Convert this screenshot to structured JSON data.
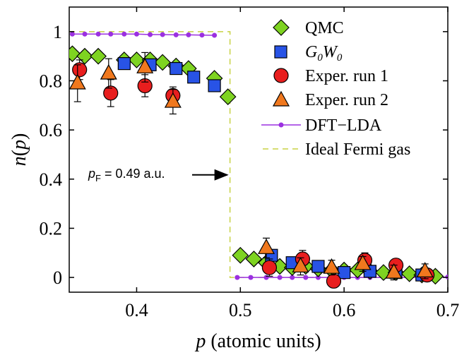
{
  "chart_data": {
    "type": "scatter",
    "title": "",
    "xlabel_var": "p",
    "xlabel_rest": " (atomic units)",
    "ylabel_main": "n",
    "ylabel_open": "(",
    "ylabel_var": "p",
    "ylabel_close": ")",
    "xlim": [
      0.335,
      0.7
    ],
    "ylim": [
      -0.06,
      1.1
    ],
    "xticks": [
      0.4,
      0.5,
      0.6,
      0.7
    ],
    "xtick_labels": [
      "0.4",
      "0.5",
      "0.6",
      "0.7"
    ],
    "yticks": [
      0,
      0.2,
      0.4,
      0.6,
      0.8,
      1
    ],
    "ytick_labels": [
      "0",
      "0.2",
      "0.4",
      "0.6",
      "0.8",
      "1"
    ],
    "grid": false,
    "legend_position": "top-right",
    "annotation": {
      "prefix": "p",
      "sub": "F",
      "suffix": " = 0.49 a.u.",
      "arrow_to_x": 0.49,
      "y": 0.4
    },
    "series": [
      {
        "name": "QMC",
        "marker": "diamond",
        "color": "#7ED321",
        "points": [
          [
            0.338,
            0.91
          ],
          [
            0.35,
            0.9
          ],
          [
            0.363,
            0.9
          ],
          [
            0.388,
            0.885
          ],
          [
            0.4,
            0.885
          ],
          [
            0.413,
            0.885
          ],
          [
            0.425,
            0.875
          ],
          [
            0.438,
            0.86
          ],
          [
            0.45,
            0.85
          ],
          [
            0.475,
            0.81
          ],
          [
            0.488,
            0.735
          ],
          [
            0.5,
            0.09
          ],
          [
            0.513,
            0.075
          ],
          [
            0.525,
            0.06
          ],
          [
            0.538,
            0.045
          ],
          [
            0.55,
            0.04
          ],
          [
            0.563,
            0.045
          ],
          [
            0.575,
            0.035
          ],
          [
            0.588,
            0.03
          ],
          [
            0.6,
            0.03
          ],
          [
            0.613,
            0.03
          ],
          [
            0.625,
            0.025
          ],
          [
            0.638,
            0.02
          ],
          [
            0.65,
            0.02
          ],
          [
            0.663,
            0.015
          ],
          [
            0.675,
            0.01
          ],
          [
            0.688,
            0.005
          ]
        ]
      },
      {
        "name": "G0W0",
        "label_main": "G",
        "label_sub1": "0",
        "label_mid": "W",
        "label_sub2": "0",
        "marker": "square",
        "color": "#2853E6",
        "points": [
          [
            0.388,
            0.87
          ],
          [
            0.413,
            0.865
          ],
          [
            0.438,
            0.85
          ],
          [
            0.455,
            0.815
          ],
          [
            0.475,
            0.78
          ],
          [
            0.53,
            0.09
          ],
          [
            0.55,
            0.06
          ],
          [
            0.575,
            0.045
          ],
          [
            0.6,
            0.02
          ],
          [
            0.625,
            0.025
          ],
          [
            0.65,
            0.02
          ],
          [
            0.675,
            0.01
          ]
        ]
      },
      {
        "name": "Exper. run 1",
        "marker": "circle",
        "color": "#E81E1E",
        "points": [
          [
            0.345,
            0.845
          ],
          [
            0.375,
            0.75
          ],
          [
            0.408,
            0.78
          ],
          [
            0.435,
            0.74
          ],
          [
            0.528,
            0.04
          ],
          [
            0.56,
            0.075
          ],
          [
            0.59,
            -0.015
          ],
          [
            0.62,
            0.07
          ],
          [
            0.65,
            0.05
          ],
          [
            0.68,
            0.01
          ]
        ],
        "errors": [
          0.04,
          0.055,
          0.045,
          0.035,
          0.035,
          0.035,
          0.025,
          0.03,
          0.025,
          0.02
        ]
      },
      {
        "name": "Exper. run 2",
        "marker": "triangle",
        "color": "#F0781E",
        "points": [
          [
            0.343,
            0.79
          ],
          [
            0.373,
            0.83
          ],
          [
            0.408,
            0.855
          ],
          [
            0.435,
            0.715
          ],
          [
            0.525,
            0.12
          ],
          [
            0.558,
            0.045
          ],
          [
            0.588,
            0.04
          ],
          [
            0.618,
            0.055
          ],
          [
            0.648,
            0.02
          ],
          [
            0.678,
            0.025
          ]
        ],
        "errors": [
          0.075,
          0.06,
          0.06,
          0.05,
          0.04,
          0.035,
          0.03,
          0.03,
          0.03,
          0.03
        ]
      },
      {
        "name": "DFT−LDA",
        "marker": "line-dot",
        "color": "#9B30E0",
        "points": [
          [
            0.338,
            0.99
          ],
          [
            0.35,
            0.99
          ],
          [
            0.363,
            0.99
          ],
          [
            0.375,
            0.99
          ],
          [
            0.388,
            0.99
          ],
          [
            0.4,
            0.99
          ],
          [
            0.413,
            0.988
          ],
          [
            0.425,
            0.988
          ],
          [
            0.438,
            0.987
          ],
          [
            0.45,
            0.987
          ],
          [
            0.463,
            0.986
          ],
          [
            0.475,
            0.985
          ],
          [
            0.497,
            0.0
          ],
          [
            0.51,
            0.0
          ],
          [
            0.525,
            0.0
          ],
          [
            0.538,
            0.0
          ],
          [
            0.55,
            0.0
          ],
          [
            0.563,
            0.0
          ],
          [
            0.575,
            0.0
          ],
          [
            0.588,
            0.0
          ],
          [
            0.6,
            0.0
          ],
          [
            0.613,
            0.0
          ],
          [
            0.625,
            0.0
          ],
          [
            0.638,
            0.0
          ],
          [
            0.65,
            0.0
          ],
          [
            0.663,
            0.0
          ],
          [
            0.675,
            0.0
          ],
          [
            0.688,
            0.0
          ],
          [
            0.7,
            0.002
          ]
        ]
      },
      {
        "name": "Ideal Fermi gas",
        "marker": "dashed-line",
        "color": "#C8D244",
        "points": [
          [
            0.335,
            1.0
          ],
          [
            0.49,
            1.0
          ],
          [
            0.49,
            0.0
          ],
          [
            0.7,
            0.0
          ]
        ]
      }
    ]
  }
}
